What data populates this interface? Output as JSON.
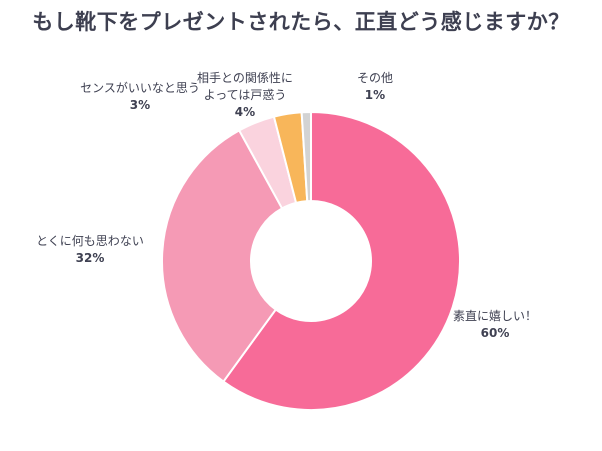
{
  "chart_data": {
    "type": "pie",
    "variant": "donut",
    "title": "もし靴下をプレゼントされたら、正直どう感じますか？",
    "slices": [
      {
        "label_lines": [
          "素直に嬉しい！"
        ],
        "value": 60,
        "pct_label": "60%",
        "color": "#F76B98"
      },
      {
        "label_lines": [
          "とくに何も思わない"
        ],
        "value": 32,
        "pct_label": "32%",
        "color": "#F59AB5"
      },
      {
        "label_lines": [
          "相手との関係性に",
          "よっては戸惑う"
        ],
        "value": 4,
        "pct_label": "4%",
        "color": "#FAD3DE"
      },
      {
        "label_lines": [
          "センスがいいなと思う"
        ],
        "value": 3,
        "pct_label": "3%",
        "color": "#F8B65A"
      },
      {
        "label_lines": [
          "その他"
        ],
        "value": 1,
        "pct_label": "1%",
        "color": "#D3D3D3"
      }
    ],
    "start": "top",
    "direction": "clockwise"
  }
}
